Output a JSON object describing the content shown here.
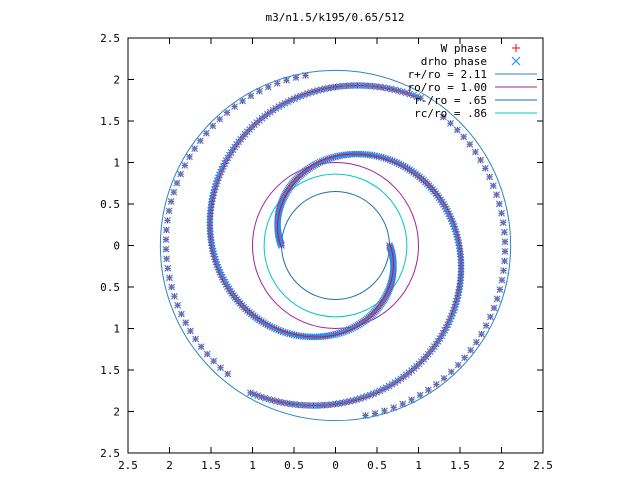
{
  "chart_data": {
    "type": "scatter",
    "title": "m3/n1.5/k195/0.65/512",
    "xlim": [
      -2.5,
      2.5
    ],
    "ylim": [
      -2.5,
      2.5
    ],
    "x_ticks": [
      -2.5,
      -2,
      -1.5,
      -1,
      -0.5,
      0,
      0.5,
      1,
      1.5,
      2,
      2.5
    ],
    "y_ticks": [
      -2.5,
      -2,
      -1.5,
      -1,
      -0.5,
      0,
      0.5,
      1,
      1.5,
      2,
      2.5
    ],
    "x_tick_labels": [
      "2.5",
      "2",
      "1.5",
      "1",
      "0.5",
      "0",
      "0.5",
      "1",
      "1.5",
      "2",
      "2.5"
    ],
    "y_tick_labels": [
      "2.5",
      "2",
      "1.5",
      "1",
      "0.5",
      "0",
      "0.5",
      "1",
      "1.5",
      "2",
      "2.5"
    ],
    "grid": false,
    "legend_position": "top-right",
    "series": [
      {
        "name": "W phase",
        "marker": "+",
        "color": "#ff0000"
      },
      {
        "name": "drho phase",
        "marker": "x",
        "color": "#1e90ff"
      }
    ],
    "circles": [
      {
        "name": "r+/ro = 2.11",
        "radius": 2.11,
        "color": "#2e86c1"
      },
      {
        "name": "ro/ro = 1.00",
        "radius": 1.0,
        "color": "#a020a0"
      },
      {
        "name": "r-/ro = .65",
        "radius": 0.65,
        "color": "#1f6fb0"
      },
      {
        "name": "rc/ro = .86",
        "radius": 0.86,
        "color": "#00c8c8"
      }
    ],
    "arms": [
      {
        "angle_start_deg": 180,
        "turn_deg": -300,
        "r_start": 0.65,
        "r_end": 2.05
      },
      {
        "angle_start_deg": 0,
        "turn_deg": -300,
        "r_start": 0.65,
        "r_end": 2.05
      }
    ],
    "outer_dots": [
      {
        "angle_start_deg": 100,
        "turn_deg": 130,
        "r_start": 2.08,
        "r_end": 2.02
      },
      {
        "angle_start_deg": -80,
        "turn_deg": 130,
        "r_start": 2.08,
        "r_end": 2.02
      }
    ]
  }
}
